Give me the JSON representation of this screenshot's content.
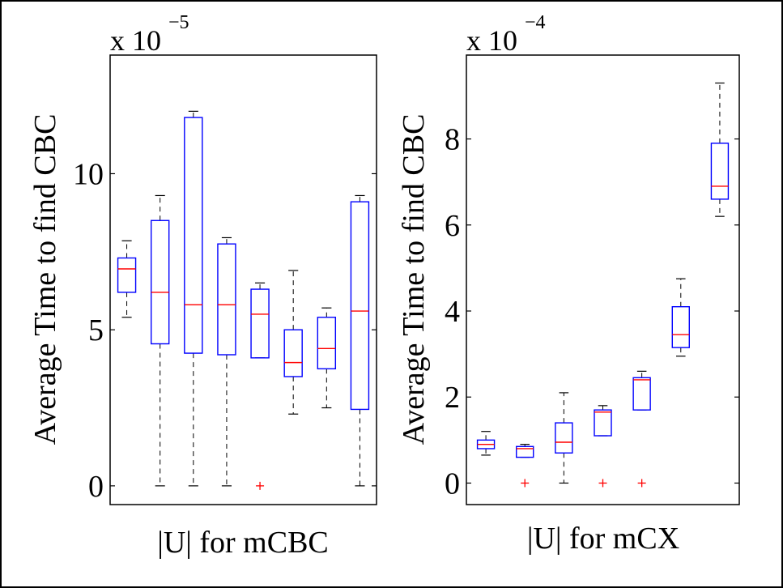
{
  "colors": {
    "box": "#0000ff",
    "median": "#ff0000",
    "whisker": "#000000",
    "outlier": "#ff0000",
    "axes": "#000000"
  },
  "chart_data": [
    {
      "type": "box",
      "xlabel": "|U| for mCBC",
      "ylabel": "Average Time to find CBC",
      "exponent_base": "x 10",
      "exponent": "−5",
      "ylim": [
        -0.6,
        13.8
      ],
      "yticks": [
        0,
        5,
        10
      ],
      "ytick_labels": [
        "0",
        "5",
        "10"
      ],
      "grid": false,
      "boxes": [
        {
          "wlo": 5.4,
          "q1": 6.2,
          "med": 6.95,
          "q3": 7.3,
          "whi": 7.85,
          "outliers": []
        },
        {
          "wlo": 0.0,
          "q1": 4.55,
          "med": 6.2,
          "q3": 8.5,
          "whi": 9.3,
          "outliers": []
        },
        {
          "wlo": 0.0,
          "q1": 4.25,
          "med": 5.8,
          "q3": 11.8,
          "whi": 12.0,
          "outliers": []
        },
        {
          "wlo": 0.0,
          "q1": 4.2,
          "med": 5.8,
          "q3": 7.75,
          "whi": 7.95,
          "outliers": []
        },
        {
          "wlo": 4.1,
          "q1": 4.1,
          "med": 5.5,
          "q3": 6.3,
          "whi": 6.5,
          "outliers": [
            0.0
          ]
        },
        {
          "wlo": 2.3,
          "q1": 3.5,
          "med": 3.95,
          "q3": 5.0,
          "whi": 6.9,
          "outliers": []
        },
        {
          "wlo": 2.5,
          "q1": 3.75,
          "med": 4.4,
          "q3": 5.4,
          "whi": 5.7,
          "outliers": []
        },
        {
          "wlo": 0.0,
          "q1": 2.45,
          "med": 5.6,
          "q3": 9.1,
          "whi": 9.3,
          "outliers": []
        }
      ]
    },
    {
      "type": "box",
      "xlabel": "|U| for mCX",
      "ylabel": "Average Time to find CBC",
      "exponent_base": "x 10",
      "exponent": "−4",
      "ylim": [
        -0.5,
        9.95
      ],
      "yticks": [
        0,
        2,
        4,
        6,
        8
      ],
      "ytick_labels": [
        "0",
        "2",
        "4",
        "6",
        "8"
      ],
      "grid": false,
      "boxes": [
        {
          "wlo": 0.65,
          "q1": 0.8,
          "med": 0.9,
          "q3": 1.0,
          "whi": 1.2,
          "outliers": []
        },
        {
          "wlo": 0.6,
          "q1": 0.6,
          "med": 0.8,
          "q3": 0.85,
          "whi": 0.9,
          "outliers": [
            0.0
          ]
        },
        {
          "wlo": 0.0,
          "q1": 0.7,
          "med": 0.95,
          "q3": 1.4,
          "whi": 2.1,
          "outliers": []
        },
        {
          "wlo": 1.1,
          "q1": 1.1,
          "med": 1.65,
          "q3": 1.7,
          "whi": 1.8,
          "outliers": [
            0.0
          ]
        },
        {
          "wlo": 1.7,
          "q1": 1.7,
          "med": 2.4,
          "q3": 2.45,
          "whi": 2.6,
          "outliers": [
            0.0
          ]
        },
        {
          "wlo": 2.95,
          "q1": 3.15,
          "med": 3.45,
          "q3": 4.1,
          "whi": 4.75,
          "outliers": []
        },
        {
          "wlo": 6.2,
          "q1": 6.6,
          "med": 6.9,
          "q3": 7.9,
          "whi": 9.3,
          "outliers": []
        }
      ]
    }
  ]
}
